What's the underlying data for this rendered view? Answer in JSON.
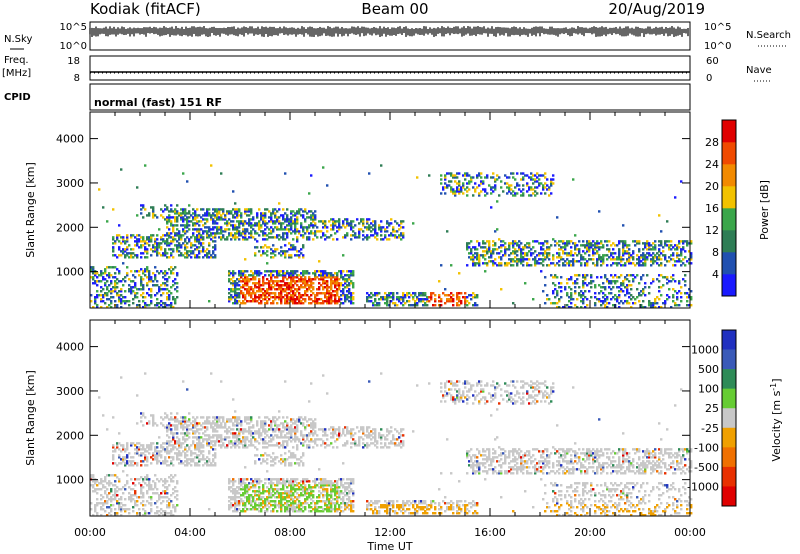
{
  "header": {
    "station": "Kodiak (fitACF)",
    "beam": "Beam 00",
    "date": "20/Aug/2019"
  },
  "aux_panels": {
    "nsky": {
      "label": "N.Sky",
      "ticks": [
        "10^5",
        "10^0"
      ]
    },
    "nsearch": {
      "label": "N.Search",
      "ticks": [
        "10^5",
        "10^0"
      ]
    },
    "freq": {
      "label_line1": "Freq.",
      "label_line2": "[MHz]",
      "ticks": [
        "18",
        "8"
      ]
    },
    "nave": {
      "label": "Nave",
      "ticks": [
        "60",
        "0"
      ]
    },
    "cpid": {
      "label": "CPID",
      "value": "normal (fast) 151 RF"
    }
  },
  "chart_data": [
    {
      "type": "heatmap",
      "title": "Power",
      "xlabel": "Time UT",
      "ylabel": "Slant Range [km]",
      "x_ticks": [
        "00:00",
        "04:00",
        "08:00",
        "12:00",
        "16:00",
        "20:00",
        "00:00"
      ],
      "xlim_hours": [
        0,
        24
      ],
      "y_ticks": [
        1000,
        2000,
        3000,
        4000
      ],
      "ylim": [
        180,
        4600
      ],
      "colorbar": {
        "label": "Power [dB]",
        "ticks": [
          4,
          8,
          12,
          16,
          20,
          24,
          28
        ],
        "range": [
          0,
          32
        ],
        "colors": [
          "#1a1aff",
          "#2050b0",
          "#2e7d55",
          "#3aa64a",
          "#f2c200",
          "#f28a00",
          "#f04a00",
          "#e00000"
        ]
      }
    },
    {
      "type": "heatmap",
      "title": "Velocity",
      "xlabel": "Time UT",
      "ylabel": "Slant Range [km]",
      "x_ticks": [
        "00:00",
        "04:00",
        "08:00",
        "12:00",
        "16:00",
        "20:00",
        "00:00"
      ],
      "xlim_hours": [
        0,
        24
      ],
      "y_ticks": [
        1000,
        2000,
        3000,
        4000
      ],
      "ylim": [
        180,
        4600
      ],
      "colorbar": {
        "label": "Velocity [m s",
        "label_sup": "-1",
        "label_end": "]",
        "ticks": [
          "1000",
          "500",
          "100",
          "25",
          "-25",
          "-100",
          "-500",
          "-1000"
        ],
        "colors": [
          "#2030c0",
          "#3a5ab8",
          "#2e8b57",
          "#66cc33",
          "#c8c8c8",
          "#f0a000",
          "#f07000",
          "#e83000",
          "#e00000"
        ]
      }
    }
  ]
}
